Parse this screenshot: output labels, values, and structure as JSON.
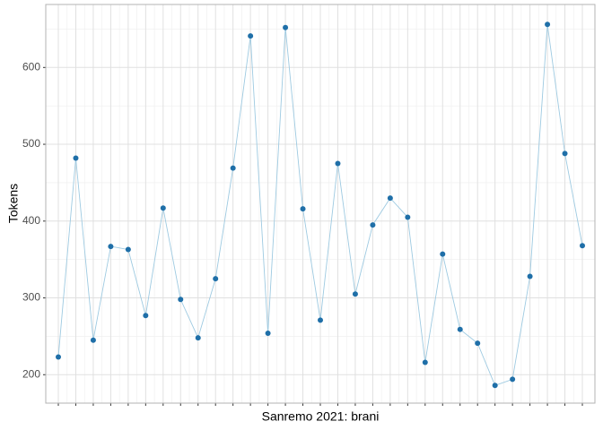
{
  "chart_data": {
    "type": "line",
    "x_label": "Sanremo 2021: brani",
    "y_label": "Tokens",
    "categories": [
      null,
      null,
      null,
      null,
      null,
      null,
      null,
      null,
      null,
      null,
      null,
      null,
      null,
      null,
      null,
      null,
      null,
      null,
      null,
      null,
      null,
      null,
      null,
      null,
      null,
      null,
      null,
      null,
      null,
      null,
      null
    ],
    "series": [
      {
        "line_color": "#9ecae1",
        "color": "#1f6fa8",
        "values": [
          223,
          482,
          245,
          367,
          363,
          277,
          417,
          298,
          248,
          325,
          469,
          641,
          254,
          652,
          416,
          271,
          475,
          305,
          395,
          430,
          405,
          216,
          357,
          259,
          241,
          186,
          194,
          328,
          656,
          488,
          368
        ]
      }
    ],
    "ylim": [
      163,
      682
    ],
    "yticks": [
      200,
      300,
      400,
      500,
      600
    ],
    "grid": true
  }
}
